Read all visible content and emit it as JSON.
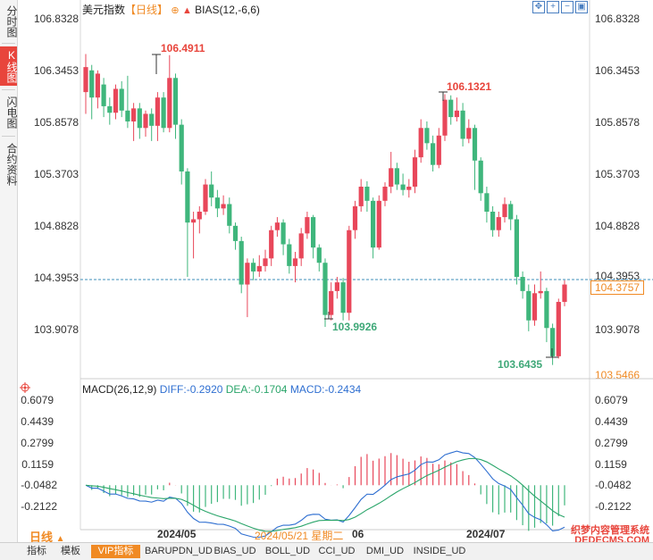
{
  "side_tabs": [
    "分时图",
    "K线图",
    "闪电图",
    "合约资料"
  ],
  "header": {
    "title": "美元指数",
    "period": "【日线】",
    "indicator": "BIAS(12,-6,6)"
  },
  "price_axis": [
    "106.8328",
    "106.3453",
    "105.8578",
    "105.3703",
    "104.8828",
    "104.3953",
    "103.9078"
  ],
  "last_price": "104.3757",
  "bottom_price": "103.5466",
  "annotations": {
    "high1": "106.4911",
    "high2": "106.1321",
    "low1": "103.9926",
    "low2": "103.6435"
  },
  "macd": {
    "name": "MACD(26,12,9)",
    "diff": "DIFF:-0.2920",
    "dea": "DEA:-0.1704",
    "macd": "MACD:-0.2434",
    "axis": [
      "0.6079",
      "0.4439",
      "0.2799",
      "0.1159",
      "-0.0482",
      "-0.2122"
    ]
  },
  "x_labels": {
    "may": "2024/05",
    "jun": "06",
    "jul": "2024/07",
    "cursor": "2024/05/21 星期二"
  },
  "period_button": "日线",
  "bottom_tabs": [
    "指标",
    "模板",
    "VIP指标",
    "BARUPDN_UD",
    "BIAS_UD",
    "BOLL_UD",
    "CCI_UD",
    "DMI_UD",
    "INSIDE_UD"
  ],
  "watermark": "织梦内容管理系统 DEDECMS.COM",
  "colors": {
    "up": "#e8475a",
    "down": "#3fb67c",
    "diff": "#2f6fd1",
    "dea": "#2aa56a",
    "accent": "#f08a24"
  },
  "chart_data": {
    "type": "candlestick",
    "title": "美元指数 日线",
    "ylim": [
      103.5466,
      106.8328
    ],
    "candles": [
      [
        106.15,
        106.38,
        106.5,
        105.95
      ],
      [
        106.35,
        106.1,
        106.4,
        105.9
      ],
      [
        106.1,
        106.32,
        106.35,
        106.0
      ],
      [
        106.22,
        106.02,
        106.28,
        105.92
      ],
      [
        106.02,
        105.96,
        106.1,
        105.85
      ],
      [
        105.96,
        106.18,
        106.22,
        105.9
      ],
      [
        106.18,
        105.98,
        106.25,
        105.92
      ],
      [
        105.98,
        105.88,
        106.3,
        105.82
      ],
      [
        105.88,
        106.0,
        106.05,
        105.7
      ],
      [
        106.0,
        105.82,
        106.05,
        105.72
      ],
      [
        105.82,
        105.95,
        105.98,
        105.74
      ],
      [
        105.95,
        105.84,
        106.0,
        105.7
      ],
      [
        105.84,
        106.1,
        106.15,
        105.7
      ],
      [
        106.1,
        105.82,
        106.15,
        105.78
      ],
      [
        105.82,
        106.28,
        106.49,
        105.78
      ],
      [
        106.28,
        105.85,
        106.32,
        105.72
      ],
      [
        105.85,
        105.42,
        105.9,
        105.3
      ],
      [
        105.42,
        104.95,
        105.45,
        104.45
      ],
      [
        104.95,
        104.98,
        105.05,
        104.62
      ],
      [
        104.98,
        105.05,
        105.1,
        104.85
      ],
      [
        105.05,
        105.3,
        105.35,
        105.02
      ],
      [
        105.3,
        105.18,
        105.42,
        105.1
      ],
      [
        105.18,
        105.08,
        105.25,
        105.0
      ],
      [
        105.08,
        105.12,
        105.2,
        105.02
      ],
      [
        105.12,
        104.92,
        105.18,
        104.85
      ],
      [
        104.92,
        104.78,
        104.95,
        104.7
      ],
      [
        104.78,
        104.38,
        104.82,
        104.3
      ],
      [
        104.38,
        104.58,
        104.62,
        104.08
      ],
      [
        104.58,
        104.5,
        104.62,
        104.42
      ],
      [
        104.5,
        104.55,
        104.65,
        104.45
      ],
      [
        104.55,
        104.62,
        104.7,
        104.5
      ],
      [
        104.62,
        104.88,
        104.92,
        104.55
      ],
      [
        104.88,
        104.95,
        105.0,
        104.82
      ],
      [
        104.95,
        104.75,
        104.98,
        104.65
      ],
      [
        104.75,
        104.55,
        104.8,
        104.48
      ],
      [
        104.55,
        104.62,
        104.68,
        104.4
      ],
      [
        104.62,
        104.85,
        104.9,
        104.55
      ],
      [
        104.85,
        105.0,
        105.05,
        104.8
      ],
      [
        105.0,
        104.72,
        105.02,
        104.62
      ],
      [
        104.72,
        104.58,
        104.75,
        104.5
      ],
      [
        104.58,
        104.1,
        104.62,
        103.99
      ],
      [
        104.1,
        104.32,
        104.4,
        104.05
      ],
      [
        104.32,
        104.4,
        104.45,
        104.25
      ],
      [
        104.4,
        104.12,
        104.44,
        104.05
      ],
      [
        104.12,
        104.88,
        104.92,
        104.05
      ],
      [
        104.88,
        105.1,
        105.15,
        104.8
      ],
      [
        105.1,
        105.28,
        105.35,
        105.05
      ],
      [
        105.28,
        105.15,
        105.33,
        105.05
      ],
      [
        105.15,
        104.72,
        105.18,
        104.62
      ],
      [
        104.72,
        105.15,
        105.2,
        104.7
      ],
      [
        105.15,
        105.28,
        105.32,
        105.1
      ],
      [
        105.28,
        105.45,
        105.6,
        105.22
      ],
      [
        105.45,
        105.3,
        105.5,
        105.25
      ],
      [
        105.3,
        105.25,
        105.4,
        105.2
      ],
      [
        105.25,
        105.28,
        105.35,
        105.18
      ],
      [
        105.28,
        105.55,
        105.62,
        105.22
      ],
      [
        105.55,
        105.82,
        105.9,
        105.5
      ],
      [
        105.82,
        105.68,
        105.88,
        105.62
      ],
      [
        105.68,
        105.48,
        105.75,
        105.42
      ],
      [
        105.48,
        105.75,
        105.82,
        105.45
      ],
      [
        105.75,
        106.08,
        106.13,
        105.7
      ],
      [
        106.08,
        105.92,
        106.12,
        105.85
      ],
      [
        105.92,
        105.98,
        106.1,
        105.88
      ],
      [
        105.98,
        105.72,
        106.05,
        105.65
      ],
      [
        105.72,
        105.82,
        105.9,
        105.68
      ],
      [
        105.82,
        105.52,
        105.85,
        105.25
      ],
      [
        105.52,
        105.22,
        105.55,
        105.15
      ],
      [
        105.22,
        105.05,
        105.28,
        104.95
      ],
      [
        105.05,
        104.88,
        105.1,
        104.82
      ],
      [
        104.88,
        105.0,
        105.05,
        104.82
      ],
      [
        105.0,
        105.12,
        105.18,
        104.95
      ],
      [
        105.12,
        104.98,
        105.15,
        104.88
      ],
      [
        104.98,
        104.45,
        105.02,
        104.38
      ],
      [
        104.45,
        104.32,
        104.5,
        104.25
      ],
      [
        104.32,
        104.05,
        104.38,
        103.95
      ],
      [
        104.05,
        104.3,
        104.38,
        104.0
      ],
      [
        104.3,
        104.32,
        104.5,
        104.25
      ],
      [
        104.32,
        103.98,
        104.35,
        103.85
      ],
      [
        103.98,
        103.72,
        104.02,
        103.64
      ],
      [
        103.72,
        104.22,
        104.25,
        103.7
      ],
      [
        104.22,
        104.38,
        104.42,
        104.18
      ]
    ],
    "macd_axis_range": [
      -0.32,
      0.68
    ]
  }
}
